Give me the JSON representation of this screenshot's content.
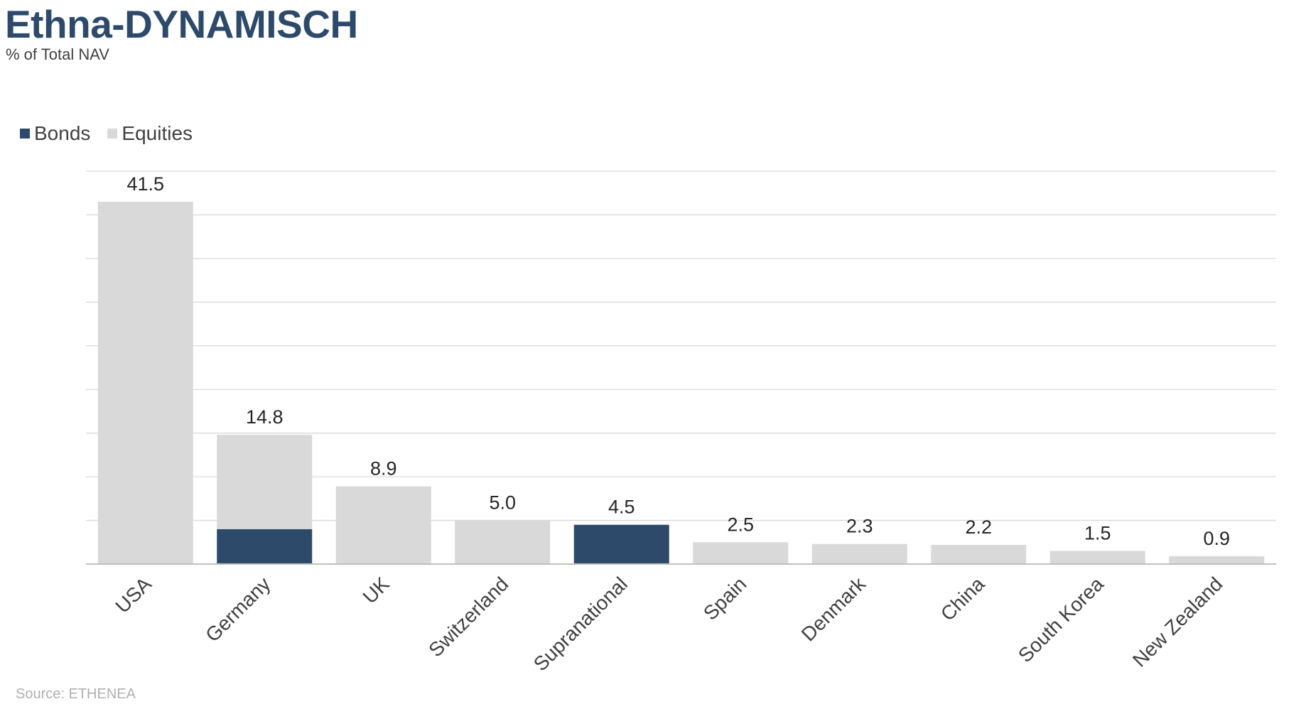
{
  "chart_data": {
    "type": "bar",
    "stacked": true,
    "title": "Ethna-DYNAMISCH",
    "subtitle": "% of Total NAV",
    "categories": [
      "USA",
      "Germany",
      "UK",
      "Switzerland",
      "Supranational",
      "Spain",
      "Denmark",
      "China",
      "South Korea",
      "New Zealand"
    ],
    "series": [
      {
        "name": "Bonds",
        "color": "#2d4a6b",
        "values": [
          0,
          4.0,
          0,
          0,
          4.5,
          0,
          0,
          0,
          0,
          0
        ]
      },
      {
        "name": "Equities",
        "color": "#d9d9d9",
        "values": [
          41.5,
          10.8,
          8.9,
          5.0,
          0,
          2.5,
          2.3,
          2.2,
          1.5,
          0.9
        ]
      }
    ],
    "data_labels": [
      "41.5",
      "14.8",
      "8.9",
      "5.0",
      "4.5",
      "2.5",
      "2.3",
      "2.2",
      "1.5",
      "0.9"
    ],
    "ylim": [
      0,
      45
    ],
    "grid": true,
    "legend_position": "top-left",
    "xlabel": "",
    "ylabel": ""
  },
  "source_note": "Source: ETHENEA"
}
